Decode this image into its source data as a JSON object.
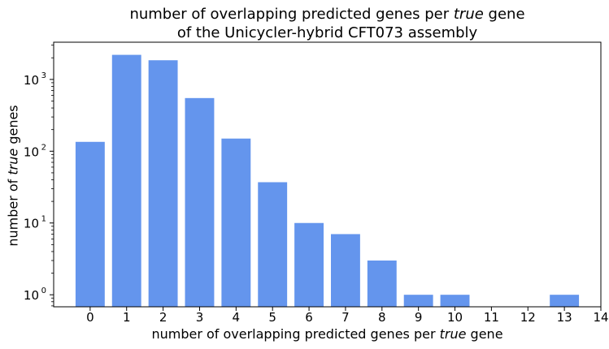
{
  "chart_data": {
    "type": "bar",
    "title_line1_pre": "number of overlapping predicted genes per ",
    "title_line1_em": "true",
    "title_line1_post": " gene",
    "title_line2": "of the Unicycler-hybrid CFT073 assembly",
    "xlabel_pre": "number of overlapping predicted genes per ",
    "xlabel_em": "true",
    "xlabel_post": " gene",
    "ylabel_pre": "number of ",
    "ylabel_em": "true",
    "ylabel_post": " genes",
    "x": [
      0,
      1,
      2,
      3,
      4,
      5,
      6,
      7,
      8,
      9,
      10,
      13
    ],
    "values": [
      135,
      2200,
      1850,
      550,
      150,
      37,
      10,
      7,
      3,
      1,
      1,
      1
    ],
    "xticks": [
      "0",
      "1",
      "2",
      "3",
      "4",
      "5",
      "6",
      "7",
      "8",
      "9",
      "10",
      "11",
      "12",
      "13",
      "14"
    ],
    "xlim": [
      -1,
      14
    ],
    "yscale": "log",
    "ylim": [
      0.68,
      3300
    ],
    "yticks": [
      {
        "base": "10",
        "exp": "0",
        "value": 1
      },
      {
        "base": "10",
        "exp": "1",
        "value": 10
      },
      {
        "base": "10",
        "exp": "2",
        "value": 100
      },
      {
        "base": "10",
        "exp": "3",
        "value": 1000
      }
    ],
    "bar_color": "#6495ed",
    "grid": false,
    "legend": "none"
  }
}
